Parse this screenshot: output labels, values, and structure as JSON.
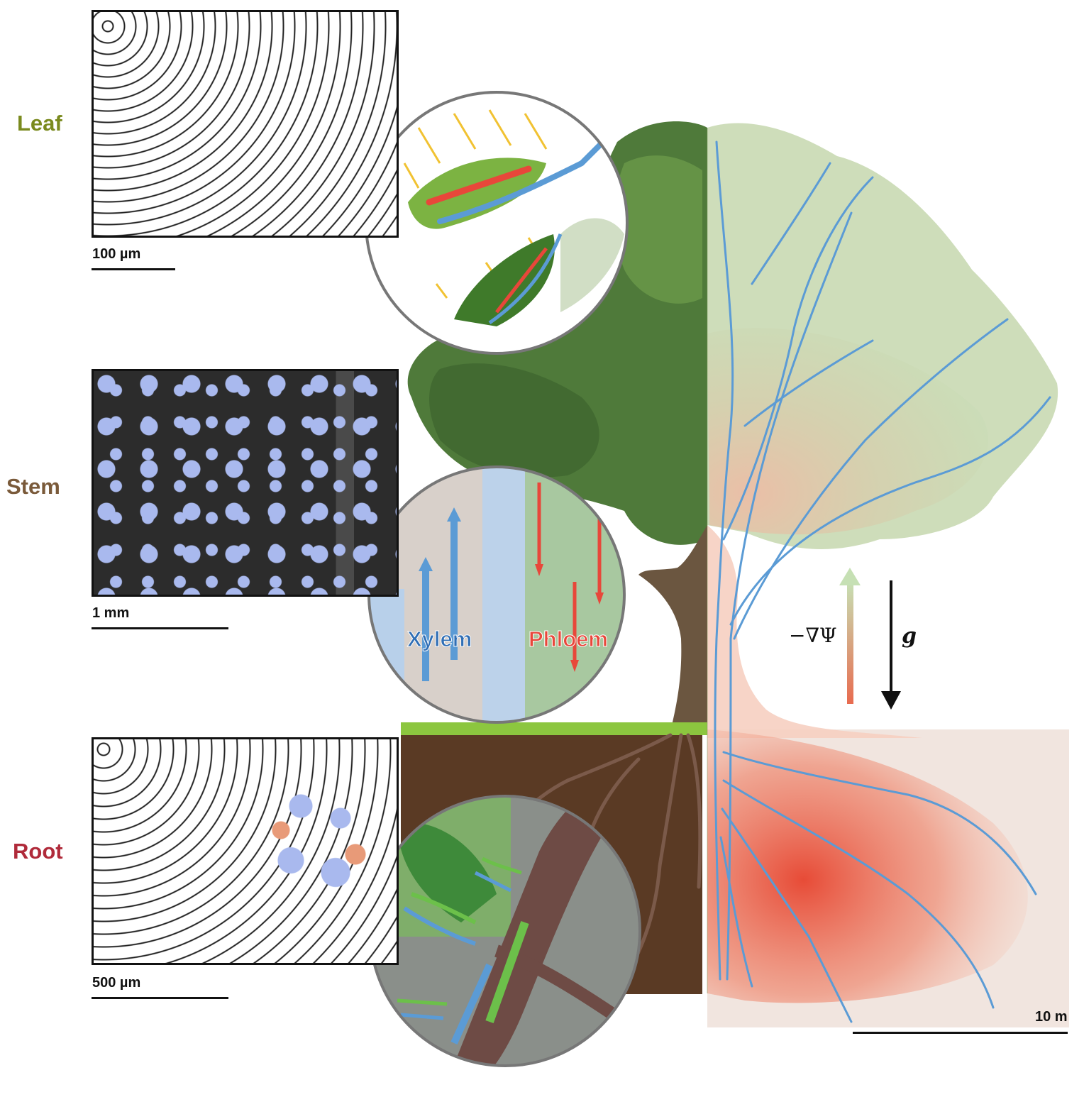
{
  "sections": {
    "leaf": {
      "label": "Leaf",
      "color": "#7a8a1e",
      "scale": "100 µm"
    },
    "stem": {
      "label": "Stem",
      "color": "#7a5a3a",
      "scale": "1 mm"
    },
    "root": {
      "label": "Root",
      "color": "#b02a3a",
      "scale": "500 µm"
    }
  },
  "inset_labels": {
    "xylem": {
      "text": "Xylem",
      "color": "#2f6eb5"
    },
    "phloem": {
      "text": "Phloem",
      "color": "#e8473a"
    }
  },
  "potential_label": "−∇Ψ",
  "gravity_label": "g",
  "tree_scale": "10 m",
  "colors": {
    "xylem_blue": "#5b9bd5",
    "phloem_red": "#e8473a",
    "foliage_green": "#4f7a3a",
    "soil_brown": "#5a3a24",
    "gradient_low": "#e86b4f",
    "gradient_high": "#b7d6a8"
  }
}
